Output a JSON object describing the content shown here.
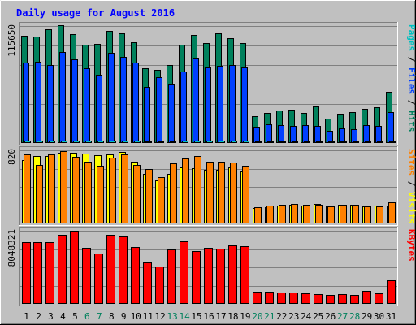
{
  "chart_data": {
    "type": "bar",
    "title": "Daily usage for August 2016",
    "categories": [
      "1",
      "2",
      "3",
      "4",
      "5",
      "6",
      "7",
      "8",
      "9",
      "10",
      "11",
      "12",
      "13",
      "14",
      "15",
      "16",
      "17",
      "18",
      "19",
      "20",
      "21",
      "22",
      "23",
      "24",
      "25",
      "26",
      "27",
      "28",
      "29",
      "30",
      "31"
    ],
    "weekend_days": [
      "6",
      "7",
      "13",
      "14",
      "20",
      "21",
      "27",
      "28"
    ],
    "panels": [
      {
        "name": "requests",
        "ymax_label": "115650",
        "ylim": [
          0,
          115650
        ],
        "side_label": [
          {
            "text": "Pages",
            "color": "#00c0c0"
          },
          {
            "text": " / ",
            "color": "#000000"
          },
          {
            "text": "Files",
            "color": "#0040ff"
          },
          {
            "text": " / ",
            "color": "#000000"
          },
          {
            "text": "Hits",
            "color": "#00805c"
          }
        ],
        "series": [
          {
            "name": "Hits",
            "color": "#00805c",
            "values": [
              105700,
              105000,
              112800,
              116300,
              107500,
              97000,
              98000,
              111100,
              108600,
              99800,
              73600,
              72300,
              77300,
              97500,
              106900,
              98500,
              108200,
              103700,
              98700,
              26800,
              30000,
              32200,
              33100,
              30100,
              35800,
              24100,
              28700,
              30500,
              33400,
              35000,
              50900
            ]
          },
          {
            "name": "Files",
            "color": "#0040ff",
            "values": [
              79800,
              80300,
              77300,
              89900,
              82700,
              73700,
              67700,
              89100,
              85100,
              79600,
              55200,
              65200,
              58600,
              70300,
              83300,
              74600,
              76600,
              76800,
              74300,
              16400,
              18400,
              17400,
              16500,
              17500,
              16600,
              12000,
              14300,
              13800,
              17300,
              16700,
              30800
            ]
          },
          {
            "name": "Pages",
            "color": "#00c0c0",
            "values": [
              2300,
              2300,
              2300,
              2500,
              2400,
              2200,
              2200,
              2400,
              2400,
              2300,
              1900,
              1900,
              1900,
              2200,
              2400,
              2300,
              2400,
              2300,
              2200,
              1500,
              1500,
              1500,
              1500,
              1500,
              1500,
              1400,
              1400,
              1400,
              1500,
              1500,
              1700
            ]
          }
        ]
      },
      {
        "name": "visits",
        "ymax_label": "820",
        "ylim": [
          0,
          820
        ],
        "side_label": [
          {
            "text": "Sites",
            "color": "#ff8000"
          },
          {
            "text": " / ",
            "color": "#000000"
          },
          {
            "text": "Visits",
            "color": "#ffff00"
          }
        ],
        "series": [
          {
            "name": "Visits",
            "color": "#ffff00",
            "values": [
              710,
              755,
              755,
              793,
              793,
              780,
              765,
              776,
              800,
              690,
              560,
              480,
              560,
              630,
              615,
              600,
              600,
              630,
              580,
              175,
              185,
              200,
              205,
              200,
              215,
              192,
              210,
              210,
              195,
              200,
              190
            ]
          },
          {
            "name": "Sites",
            "color": "#ff8000",
            "values": [
              770,
              660,
              770,
              812,
              750,
              690,
              650,
              735,
              775,
              660,
              610,
              520,
              670,
              725,
              755,
              690,
              690,
              680,
              650,
              178,
              200,
              210,
              215,
              207,
              212,
              190,
              210,
              205,
              190,
              190,
              235
            ]
          }
        ]
      },
      {
        "name": "kbytes",
        "ymax_label": "8048321",
        "ylim": [
          0,
          8048321
        ],
        "side_label": [
          {
            "text": "KBytes",
            "color": "#ff0000"
          }
        ],
        "series": [
          {
            "name": "KBytes",
            "color": "#ff0000",
            "values": [
              6780000,
              6800000,
              6780000,
              7600000,
              8048321,
              6170000,
              5540000,
              7600000,
              7400000,
              6260000,
              4520000,
              4140000,
              6000000,
              6850000,
              5840000,
              6200000,
              6070000,
              6450000,
              6380000,
              1320000,
              1340000,
              1230000,
              1210000,
              1200000,
              1100000,
              955000,
              1090000,
              1010000,
              1410000,
              1140000,
              2550000
            ]
          }
        ]
      }
    ],
    "colors": {
      "background": "#c0c0c0",
      "plot_background": "#c0c0c0",
      "title": "#0000ff",
      "day_label": "#000000",
      "weekend_label": "#00805c",
      "grid": "#808080"
    },
    "grid": true
  }
}
